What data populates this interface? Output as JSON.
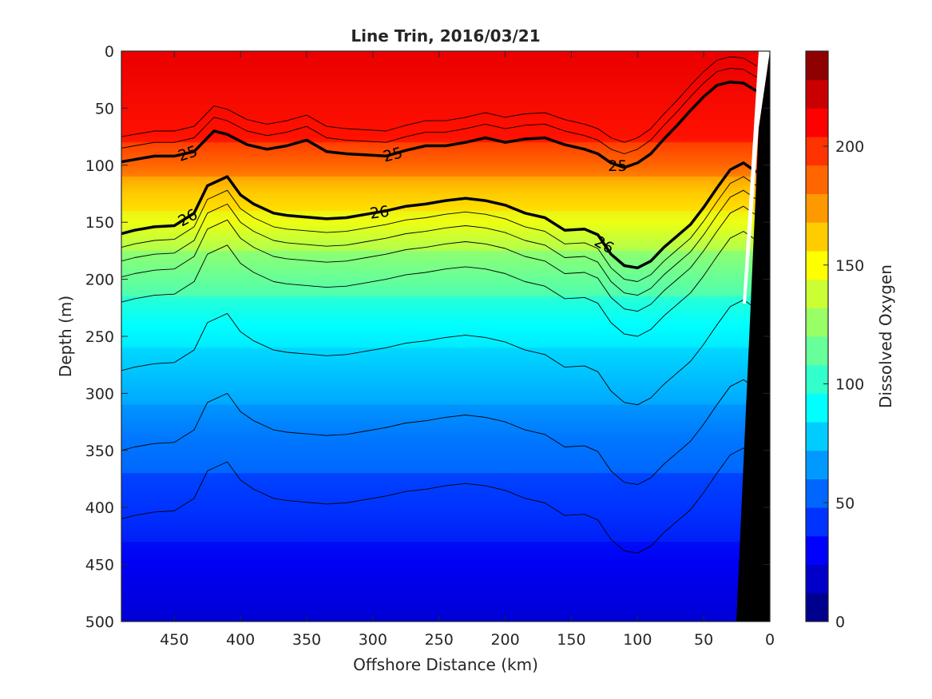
{
  "chart_data": {
    "type": "heatmap",
    "title": "Line Trin, 2016/03/21",
    "xlabel": "Offshore Distance (km)",
    "ylabel": "Depth (m)",
    "colorbar_label": "Dissolved Oxygen",
    "xlim": [
      490,
      0
    ],
    "ylim": [
      500,
      0
    ],
    "clim": [
      0,
      240
    ],
    "x_ticks": [
      "450",
      "400",
      "350",
      "300",
      "250",
      "200",
      "150",
      "100",
      "50",
      "0"
    ],
    "y_ticks": [
      "0",
      "50",
      "100",
      "150",
      "200",
      "250",
      "300",
      "350",
      "400",
      "450",
      "500"
    ],
    "colorbar_ticks": [
      "0",
      "50",
      "100",
      "150",
      "200"
    ],
    "colormap": [
      "#00008f",
      "#0000c8",
      "#0000ff",
      "#0033ff",
      "#0066ff",
      "#0099ff",
      "#00ccff",
      "#00ffff",
      "#33ffcc",
      "#66ff99",
      "#99ff66",
      "#ccff33",
      "#ffff00",
      "#ffcc00",
      "#ff9900",
      "#ff6600",
      "#ff3300",
      "#ff0000",
      "#c80000",
      "#8f0000"
    ],
    "contour_labels": [
      "25",
      "25",
      "25",
      "26",
      "26",
      "26"
    ],
    "isopycnal_25": {
      "x": [
        490,
        480,
        465,
        450,
        435,
        420,
        410,
        395,
        380,
        365,
        350,
        335,
        320,
        305,
        290,
        275,
        260,
        245,
        230,
        215,
        200,
        185,
        170,
        155,
        140,
        130,
        120,
        110,
        100,
        90,
        80,
        70,
        60,
        50,
        40,
        30,
        20,
        10
      ],
      "depth": [
        97,
        95,
        92,
        92,
        88,
        70,
        73,
        82,
        86,
        83,
        78,
        88,
        90,
        91,
        92,
        87,
        83,
        83,
        80,
        76,
        80,
        77,
        76,
        82,
        86,
        90,
        98,
        102,
        98,
        90,
        77,
        65,
        52,
        40,
        30,
        27,
        28,
        35
      ]
    },
    "isopycnal_26": {
      "x": [
        490,
        480,
        465,
        450,
        435,
        425,
        410,
        400,
        390,
        375,
        365,
        345,
        335,
        320,
        305,
        290,
        275,
        260,
        245,
        230,
        215,
        200,
        185,
        170,
        155,
        140,
        130,
        120,
        110,
        100,
        90,
        80,
        70,
        60,
        50,
        40,
        30,
        20,
        10
      ],
      "depth": [
        160,
        157,
        154,
        153,
        142,
        118,
        110,
        126,
        134,
        142,
        144,
        146,
        147,
        146,
        143,
        140,
        136,
        134,
        131,
        129,
        131,
        135,
        142,
        146,
        157,
        156,
        161,
        178,
        188,
        190,
        184,
        172,
        162,
        152,
        137,
        120,
        104,
        98,
        106
      ]
    },
    "water_masses": [
      {
        "top": 0,
        "bottom": 80,
        "value": 210
      },
      {
        "top": 80,
        "bottom": 110,
        "value": 185
      },
      {
        "top": 110,
        "bottom": 140,
        "value": 160
      },
      {
        "top": 140,
        "bottom": 175,
        "value": 140
      },
      {
        "top": 175,
        "bottom": 215,
        "value": 115
      },
      {
        "top": 215,
        "bottom": 260,
        "value": 95
      },
      {
        "top": 260,
        "bottom": 310,
        "value": 75
      },
      {
        "top": 310,
        "bottom": 370,
        "value": 60
      },
      {
        "top": 370,
        "bottom": 430,
        "value": 45
      },
      {
        "top": 430,
        "bottom": 500,
        "value": 25
      }
    ]
  }
}
